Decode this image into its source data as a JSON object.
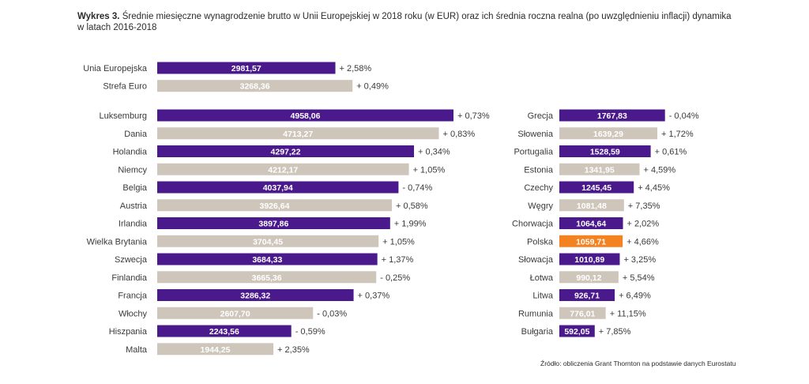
{
  "header": {
    "prefix": "Wykres 3.",
    "text": "Średnie miesięczne wynagrodzenie brutto w Unii Europejskiej w 2018 roku (w EUR) oraz ich średnia roczna realna (po uwzględnieniu inflacji) dynamika",
    "text2": "w latach 2016-2018"
  },
  "source": "Źródło: obliczenia Grant Thornton na podstawie danych Eurostatu",
  "colors": {
    "purple": "#4a1a8c",
    "beige": "#cfc6bb",
    "orange": "#f58220"
  },
  "chart_data": {
    "type": "bar",
    "orientation": "horizontal",
    "groups": [
      {
        "name": "aggregates",
        "categories": [
          "Unia Europejska",
          "Strefa Euro"
        ],
        "values": [
          2981.57,
          3268.36
        ],
        "value_labels": [
          "2981,57",
          "3268,36"
        ],
        "dynamics": [
          "+ 2,58%",
          "+ 0,49%"
        ],
        "colors": [
          "purple",
          "beige"
        ]
      },
      {
        "name": "left",
        "categories": [
          "Luksemburg",
          "Dania",
          "Holandia",
          "Niemcy",
          "Belgia",
          "Austria",
          "Irlandia",
          "Wielka Brytania",
          "Szwecja",
          "Finlandia",
          "Francja",
          "Włochy",
          "Hiszpania",
          "Malta"
        ],
        "values": [
          4958.06,
          4713.27,
          4297.22,
          4212.17,
          4037.94,
          3926.64,
          3897.86,
          3704.45,
          3684.33,
          3665.36,
          3286.32,
          2607.7,
          2243.56,
          1944.25
        ],
        "value_labels": [
          "4958,06",
          "4713,27",
          "4297,22",
          "4212,17",
          "4037,94",
          "3926,64",
          "3897,86",
          "3704,45",
          "3684,33",
          "3665,36",
          "3286,32",
          "2607,70",
          "2243,56",
          "1944,25"
        ],
        "dynamics": [
          "+ 0,73%",
          "+ 0,83%",
          "+ 0,34%",
          "+ 1,05%",
          "- 0,74%",
          "+ 0,58%",
          "+ 1,99%",
          "+ 1,05%",
          "+ 1,37%",
          "- 0,25%",
          "+ 0,37%",
          "- 0,03%",
          "- 0,59%",
          "+ 2,35%"
        ],
        "colors": [
          "purple",
          "beige",
          "purple",
          "beige",
          "purple",
          "beige",
          "purple",
          "beige",
          "purple",
          "beige",
          "purple",
          "beige",
          "purple",
          "beige"
        ]
      },
      {
        "name": "right",
        "categories": [
          "Grecja",
          "Słowenia",
          "Portugalia",
          "Estonia",
          "Czechy",
          "Węgry",
          "Chorwacja",
          "Polska",
          "Słowacja",
          "Łotwa",
          "Litwa",
          "Rumunia",
          "Bułgaria"
        ],
        "values": [
          1767.83,
          1639.29,
          1528.59,
          1341.95,
          1245.45,
          1081.48,
          1064.64,
          1059.71,
          1010.89,
          990.12,
          926.71,
          776.01,
          592.05
        ],
        "value_labels": [
          "1767,83",
          "1639,29",
          "1528,59",
          "1341,95",
          "1245,45",
          "1081,48",
          "1064,64",
          "1059,71",
          "1010,89",
          "990,12",
          "926,71",
          "776,01",
          "592,05"
        ],
        "dynamics": [
          "- 0,04%",
          "+ 1,72%",
          "+ 0,61%",
          "+ 4,59%",
          "+ 4,45%",
          "+ 7,35%",
          "+ 2,02%",
          "+ 4,66%",
          "+ 3,25%",
          "+ 5,54%",
          "+ 6,49%",
          "+ 11,15%",
          "+ 7,85%"
        ],
        "colors": [
          "purple",
          "beige",
          "purple",
          "beige",
          "purple",
          "beige",
          "purple",
          "orange",
          "purple",
          "beige",
          "purple",
          "beige",
          "purple"
        ]
      }
    ]
  }
}
